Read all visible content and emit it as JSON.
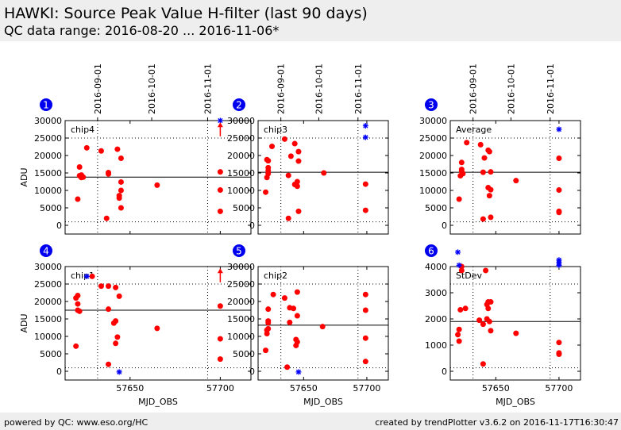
{
  "header": {
    "title": "HAWKI: Source Peak Value H-filter (last 90 days)",
    "subtitle": "QC data range: 2016-08-20 ... 2016-11-06*"
  },
  "footer": {
    "left": "powered by QC: www.eso.org/HC",
    "right": "created by trendPlotter v3.6.2 on 2016-11-17T16:30:47"
  },
  "colors": {
    "data": "#ff0000",
    "outlier": "#0000ff",
    "badge": "#0000ee",
    "reference": "#000000"
  },
  "chart_data": [
    {
      "type": "scatter",
      "number": "1",
      "label": "chip4",
      "xlabel": "",
      "ylabel": "ADU",
      "xlim": [
        57614,
        57717
      ],
      "ylim": [
        -2500,
        30000
      ],
      "x_ticks": [
        57650,
        57700
      ],
      "show_x_tick_labels": false,
      "y_ticks": [
        0,
        5000,
        10000,
        15000,
        20000,
        25000,
        30000
      ],
      "date_ticks": [
        {
          "label": "2016-09-01",
          "mjd": 57632
        },
        {
          "label": "2016-10-01",
          "mjd": 57662
        },
        {
          "label": "2016-11-01",
          "mjd": 57693
        }
      ],
      "reference_line": 13800,
      "dotted_hlines": [
        1000,
        25000
      ],
      "dotted_vlines": [
        57632,
        57693
      ],
      "points": [
        [
          57621,
          7500
        ],
        [
          57622,
          16700
        ],
        [
          57622,
          14200
        ],
        [
          57623,
          13700
        ],
        [
          57623,
          14400
        ],
        [
          57624,
          13800
        ],
        [
          57626,
          22200
        ],
        [
          57634,
          21300
        ],
        [
          57637,
          2000
        ],
        [
          57638,
          14700
        ],
        [
          57638,
          15100
        ],
        [
          57643,
          21800
        ],
        [
          57644,
          7800
        ],
        [
          57644,
          8500
        ],
        [
          57645,
          5000
        ],
        [
          57645,
          10000
        ],
        [
          57645,
          12400
        ],
        [
          57645,
          19200
        ],
        [
          57665,
          11500
        ],
        [
          57700,
          4000
        ],
        [
          57700,
          10100
        ],
        [
          57700,
          15300
        ]
      ],
      "outliers": [
        [
          57700,
          30000
        ]
      ],
      "arrows": [
        [
          57700,
          25500,
          29500
        ]
      ]
    },
    {
      "type": "scatter",
      "number": "2",
      "label": "chip3",
      "xlabel": "",
      "ylabel": "",
      "xlim": [
        57614,
        57717
      ],
      "ylim": [
        -2500,
        30000
      ],
      "x_ticks": [
        57650,
        57700
      ],
      "show_x_tick_labels": false,
      "y_ticks": [
        0,
        5000,
        10000,
        15000,
        20000,
        25000,
        30000
      ],
      "date_ticks": [
        {
          "label": "2016-09-01",
          "mjd": 57632
        },
        {
          "label": "2016-10-01",
          "mjd": 57662
        },
        {
          "label": "2016-11-01",
          "mjd": 57693
        }
      ],
      "reference_line": 15200,
      "dotted_hlines": [
        1000,
        25000
      ],
      "dotted_vlines": [
        57632,
        57693
      ],
      "points": [
        [
          57620,
          9500
        ],
        [
          57621,
          13700
        ],
        [
          57621,
          18800
        ],
        [
          57622,
          14800
        ],
        [
          57622,
          15700
        ],
        [
          57622,
          16500
        ],
        [
          57622,
          18500
        ],
        [
          57625,
          22600
        ],
        [
          57635,
          24700
        ],
        [
          57638,
          2000
        ],
        [
          57638,
          14300
        ],
        [
          57640,
          19800
        ],
        [
          57643,
          11700
        ],
        [
          57643,
          23400
        ],
        [
          57645,
          11200
        ],
        [
          57645,
          12500
        ],
        [
          57646,
          4000
        ],
        [
          57646,
          18400
        ],
        [
          57646,
          21100
        ],
        [
          57666,
          15000
        ],
        [
          57699,
          4300
        ],
        [
          57699,
          11800
        ]
      ],
      "outliers": [
        [
          57699,
          28500
        ],
        [
          57699,
          25200
        ]
      ],
      "arrows": []
    },
    {
      "type": "scatter",
      "number": "3",
      "label": "Average",
      "xlabel": "",
      "ylabel": "",
      "xlim": [
        57614,
        57717
      ],
      "ylim": [
        -2500,
        30000
      ],
      "x_ticks": [
        57650,
        57700
      ],
      "show_x_tick_labels": false,
      "y_ticks": [
        0,
        5000,
        10000,
        15000,
        20000,
        25000,
        30000
      ],
      "date_ticks": [
        {
          "label": "2016-09-01",
          "mjd": 57632
        },
        {
          "label": "2016-10-01",
          "mjd": 57662
        },
        {
          "label": "2016-11-01",
          "mjd": 57693
        }
      ],
      "reference_line": 15200,
      "dotted_hlines": [
        1000,
        25000
      ],
      "dotted_vlines": [
        57632,
        57693
      ],
      "points": [
        [
          57621,
          7500
        ],
        [
          57622,
          14200
        ],
        [
          57623,
          15500
        ],
        [
          57623,
          16000
        ],
        [
          57623,
          18000
        ],
        [
          57624,
          14800
        ],
        [
          57627,
          23700
        ],
        [
          57638,
          23100
        ],
        [
          57640,
          1800
        ],
        [
          57640,
          15200
        ],
        [
          57641,
          19300
        ],
        [
          57644,
          10800
        ],
        [
          57644,
          21500
        ],
        [
          57645,
          8500
        ],
        [
          57645,
          21100
        ],
        [
          57646,
          2300
        ],
        [
          57646,
          10200
        ],
        [
          57646,
          15300
        ],
        [
          57666,
          12800
        ],
        [
          57700,
          3700
        ],
        [
          57700,
          4000
        ],
        [
          57700,
          10100
        ],
        [
          57700,
          19200
        ]
      ],
      "outliers": [
        [
          57700,
          27500
        ]
      ],
      "arrows": []
    },
    {
      "type": "scatter",
      "number": "4",
      "label": "chip1",
      "xlabel": "MJD_OBS",
      "ylabel": "ADU",
      "xlim": [
        57614,
        57717
      ],
      "ylim": [
        -2500,
        30000
      ],
      "x_ticks": [
        57650,
        57700
      ],
      "show_x_tick_labels": true,
      "y_ticks": [
        0,
        5000,
        10000,
        15000,
        20000,
        25000,
        30000
      ],
      "date_ticks": [],
      "reference_line": 17500,
      "dotted_hlines": [
        1000,
        25000
      ],
      "dotted_vlines": [
        57632,
        57693
      ],
      "points": [
        [
          57620,
          7200
        ],
        [
          57620,
          21000
        ],
        [
          57621,
          17500
        ],
        [
          57621,
          19300
        ],
        [
          57621,
          21700
        ],
        [
          57622,
          17200
        ],
        [
          57629,
          27200
        ],
        [
          57634,
          24400
        ],
        [
          57638,
          2000
        ],
        [
          57638,
          17800
        ],
        [
          57638,
          24400
        ],
        [
          57641,
          13800
        ],
        [
          57642,
          14400
        ],
        [
          57642,
          24000
        ],
        [
          57642,
          8000
        ],
        [
          57643,
          9800
        ],
        [
          57644,
          21500
        ],
        [
          57665,
          12300
        ],
        [
          57700,
          3500
        ],
        [
          57700,
          9300
        ],
        [
          57700,
          18700
        ]
      ],
      "outliers": [
        [
          57626,
          27200
        ],
        [
          57644,
          -200
        ]
      ],
      "arrows": [
        [
          57700,
          25500,
          29500
        ]
      ]
    },
    {
      "type": "scatter",
      "number": "5",
      "label": "chip2",
      "xlabel": "MJD_OBS",
      "ylabel": "",
      "xlim": [
        57614,
        57717
      ],
      "ylim": [
        -2500,
        30000
      ],
      "x_ticks": [
        57650,
        57700
      ],
      "show_x_tick_labels": true,
      "y_ticks": [
        0,
        5000,
        10000,
        15000,
        20000,
        25000,
        30000
      ],
      "date_ticks": [],
      "reference_line": 13200,
      "dotted_hlines": [
        1000,
        25000
      ],
      "dotted_vlines": [
        57632,
        57693
      ],
      "points": [
        [
          57620,
          6000
        ],
        [
          57621,
          10800
        ],
        [
          57621,
          11800
        ],
        [
          57622,
          12200
        ],
        [
          57622,
          13900
        ],
        [
          57622,
          14400
        ],
        [
          57622,
          17800
        ],
        [
          57626,
          22000
        ],
        [
          57635,
          21000
        ],
        [
          57637,
          1200
        ],
        [
          57639,
          14000
        ],
        [
          57639,
          18200
        ],
        [
          57642,
          18000
        ],
        [
          57644,
          7400
        ],
        [
          57644,
          9100
        ],
        [
          57645,
          8400
        ],
        [
          57645,
          15900
        ],
        [
          57645,
          22700
        ],
        [
          57665,
          12800
        ],
        [
          57699,
          2800
        ],
        [
          57699,
          9500
        ],
        [
          57699,
          17500
        ],
        [
          57699,
          22000
        ]
      ],
      "outliers": [
        [
          57646,
          -200
        ]
      ],
      "arrows": []
    },
    {
      "type": "scatter",
      "number": "6",
      "label": "StDev",
      "xlabel": "MJD_OBS",
      "ylabel": "",
      "xlim": [
        57614,
        57717
      ],
      "ylim": [
        -333,
        4000
      ],
      "x_ticks": [
        57650,
        57700
      ],
      "show_x_tick_labels": true,
      "y_ticks": [
        0,
        1000,
        2000,
        3000,
        4000,
        5000
      ],
      "date_ticks": [],
      "reference_line": 1900,
      "dotted_hlines": [
        133,
        3333
      ],
      "dotted_vlines": [
        57632,
        57693
      ],
      "points": [
        [
          57620,
          1400
        ],
        [
          57621,
          1600
        ],
        [
          57621,
          1150
        ],
        [
          57622,
          2350
        ],
        [
          57623,
          3850
        ],
        [
          57623,
          4000
        ],
        [
          57626,
          2400
        ],
        [
          57637,
          1950
        ],
        [
          57640,
          280
        ],
        [
          57640,
          1800
        ],
        [
          57642,
          3850
        ],
        [
          57643,
          2000
        ],
        [
          57643,
          2550
        ],
        [
          57644,
          2400
        ],
        [
          57644,
          2650
        ],
        [
          57645,
          1900
        ],
        [
          57646,
          1550
        ],
        [
          57646,
          2650
        ],
        [
          57666,
          1450
        ],
        [
          57700,
          650
        ],
        [
          57700,
          700
        ],
        [
          57700,
          1100
        ]
      ],
      "outliers": [
        [
          57620,
          4550
        ],
        [
          57621,
          4050
        ],
        [
          57700,
          4250
        ],
        [
          57700,
          4150
        ],
        [
          57700,
          4050
        ]
      ],
      "arrows": []
    }
  ]
}
